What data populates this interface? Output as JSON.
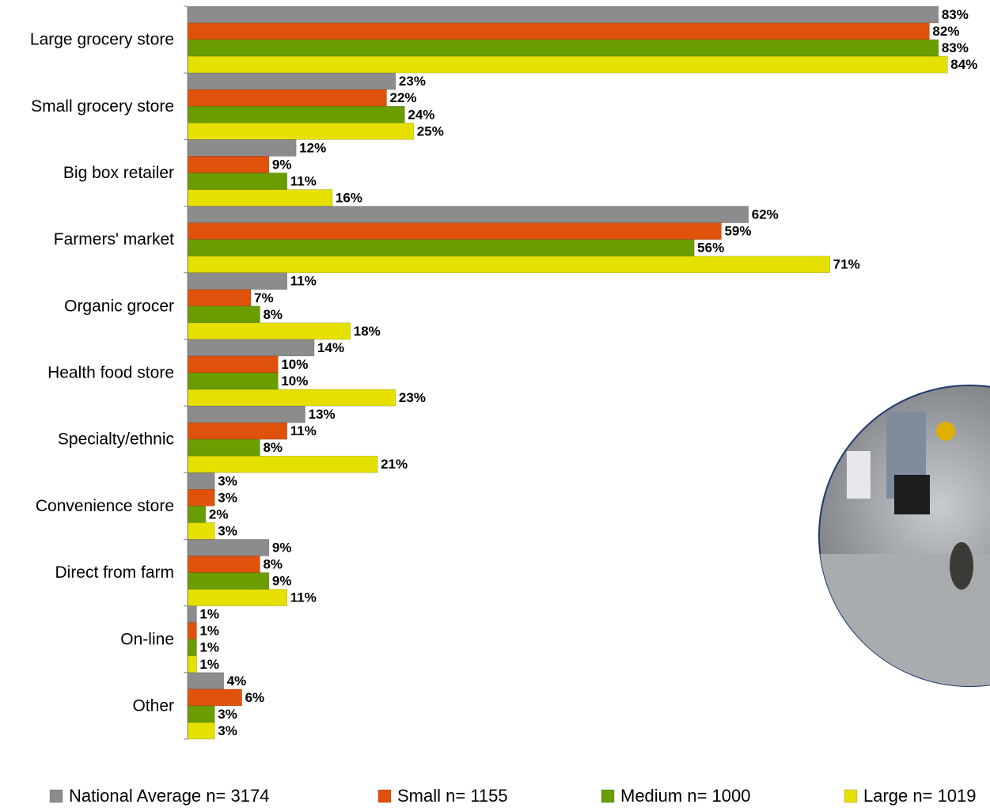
{
  "chart_data": {
    "type": "bar",
    "orientation": "horizontal",
    "categories": [
      "Large grocery store",
      "Small grocery store",
      "Big box retailer",
      "Farmers' market",
      "Organic grocer",
      "Health food store",
      "Specialty/ethnic",
      "Convenience store",
      "Direct from farm",
      "On-line",
      "Other"
    ],
    "xlim": [
      0,
      88
    ],
    "series": [
      {
        "name": "National Average n= 3174",
        "color": "#8c8c8c",
        "values": [
          83,
          23,
          12,
          62,
          11,
          14,
          13,
          3,
          9,
          1,
          4
        ],
        "value_labels": [
          "83%",
          "23%",
          "12%",
          "62%",
          "11%",
          "14%",
          "13%",
          "3%",
          "9%",
          "1%",
          "4%"
        ]
      },
      {
        "name": "Small n= 1155",
        "color": "#e0520c",
        "values": [
          82,
          22,
          9,
          59,
          7,
          10,
          11,
          3,
          8,
          1,
          6
        ],
        "value_labels": [
          "82%",
          "22%",
          "9%",
          "59%",
          "7%",
          "10%",
          "11%",
          "3%",
          "8%",
          "1%",
          "6%"
        ]
      },
      {
        "name": "Medium n= 1000",
        "color": "#6a9e00",
        "values": [
          83,
          24,
          11,
          56,
          8,
          10,
          8,
          2,
          9,
          1,
          3
        ],
        "value_labels": [
          "83%",
          "24%",
          "11%",
          "56%",
          "8%",
          "10%",
          "8%",
          "2%",
          "9%",
          "1%",
          "3%"
        ]
      },
      {
        "name": "Large n= 1019",
        "color": "#e6e000",
        "values": [
          84,
          25,
          16,
          71,
          18,
          23,
          21,
          3,
          11,
          1,
          3
        ],
        "value_labels": [
          "84%",
          "25%",
          "16%",
          "71%",
          "18%",
          "23%",
          "21%",
          "3%",
          "11%",
          "1%",
          "3%"
        ]
      }
    ]
  }
}
